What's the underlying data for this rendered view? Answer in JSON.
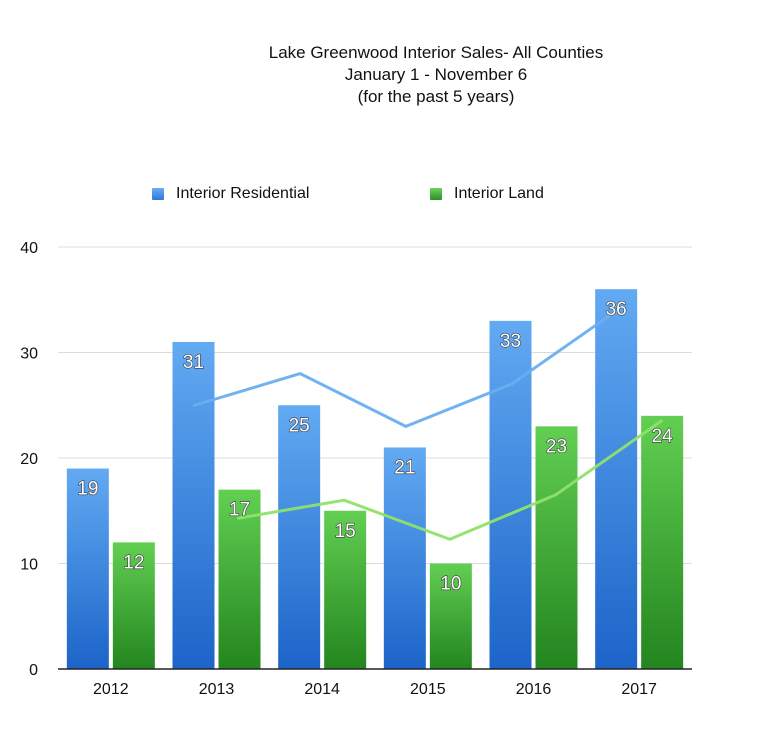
{
  "chart_data": {
    "type": "bar",
    "title": [
      "Lake Greenwood Interior Sales- All Counties",
      "January 1 - November 6",
      "(for the past 5 years)"
    ],
    "categories": [
      "2012",
      "2013",
      "2014",
      "2015",
      "2016",
      "2017"
    ],
    "series": [
      {
        "name": "Interior Residential",
        "values": [
          19,
          31,
          25,
          21,
          33,
          36
        ],
        "color": "#3f8ee8"
      },
      {
        "name": "Interior Land",
        "values": [
          12,
          17,
          15,
          10,
          23,
          24
        ],
        "color": "#3aa33a"
      }
    ],
    "trendlines": [
      {
        "name": "Interior Residential trend",
        "values": [
          25,
          28,
          23,
          27,
          34
        ],
        "color": "#6aaef0"
      },
      {
        "name": "Interior Land trend",
        "values": [
          14.3,
          16,
          12.3,
          16.5,
          23.5
        ],
        "color": "#8ee36a"
      }
    ],
    "ylim": [
      0,
      40
    ],
    "yticks": [
      0,
      10,
      20,
      30,
      40
    ],
    "xlabel": "",
    "ylabel": "",
    "grid": true,
    "legend_position": "top"
  }
}
